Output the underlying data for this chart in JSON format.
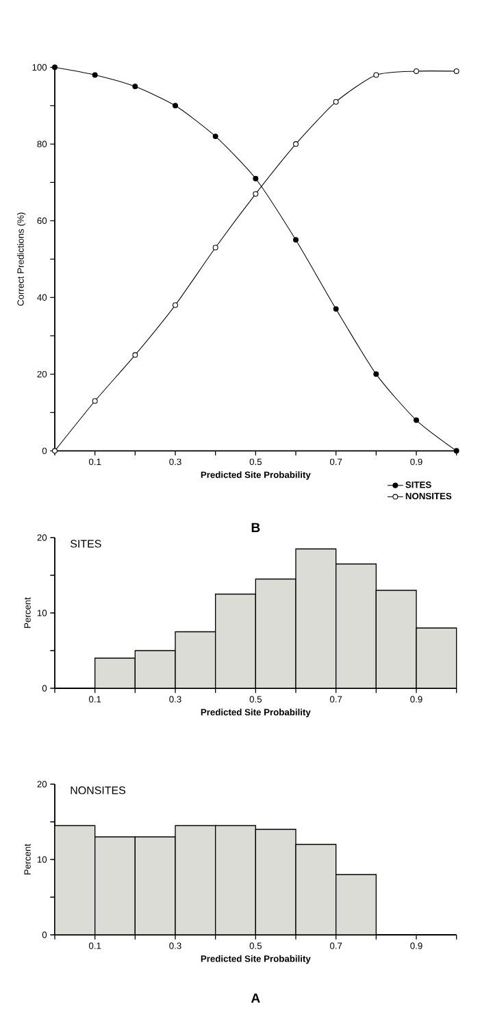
{
  "chart_data": [
    {
      "type": "histogram",
      "title": "SITES",
      "xlabel": "Predicted Site Probability",
      "ylabel": "Percent",
      "bins": [
        0.1,
        0.2,
        0.3,
        0.4,
        0.5,
        0.6,
        0.7,
        0.8,
        0.9,
        1.0
      ],
      "values": [
        4,
        5,
        7.5,
        12.5,
        14.5,
        18.5,
        16.5,
        13,
        8
      ],
      "color": "#dcdcd6",
      "xlim": [
        0,
        1
      ],
      "ylim": [
        0,
        20
      ],
      "xticks": [
        {
          "value": 0,
          "label": null
        },
        0.1,
        {
          "value": 0.2,
          "label": null
        },
        0.3,
        {
          "value": 0.4,
          "label": null
        },
        0.5,
        {
          "value": 0.6,
          "label": null
        },
        0.7,
        {
          "value": 0.8,
          "label": null
        },
        0.9,
        {
          "value": 1.0,
          "label": null
        }
      ],
      "yticks": [
        0,
        {
          "value": 5,
          "label": null
        },
        10,
        {
          "value": 15,
          "label": null
        },
        20
      ]
    },
    {
      "type": "histogram",
      "title": "NONSITES",
      "xlabel": "Predicted Site Probability",
      "ylabel": "Percent",
      "bins": [
        0,
        0.1,
        0.2,
        0.3,
        0.4,
        0.5,
        0.6,
        0.7,
        0.8
      ],
      "values": [
        14.5,
        13,
        13,
        14.5,
        14.5,
        14,
        12,
        8
      ],
      "color": "#dcdcd6",
      "xlim": [
        0,
        1
      ],
      "ylim": [
        0,
        20
      ],
      "xticks": [
        {
          "value": 0,
          "label": null
        },
        0.1,
        {
          "value": 0.2,
          "label": null
        },
        0.3,
        {
          "value": 0.4,
          "label": null
        },
        0.5,
        {
          "value": 0.6,
          "label": null
        },
        0.7,
        {
          "value": 0.8,
          "label": null
        },
        0.9,
        {
          "value": 1.0,
          "label": null
        }
      ],
      "yticks": [
        0,
        {
          "value": 5,
          "label": null
        },
        10,
        {
          "value": 15,
          "label": null
        },
        20
      ],
      "annotations": [
        "A"
      ]
    },
    {
      "type": "line",
      "xlabel": "Predicted Site Probability",
      "ylabel": "Correct Predictions (%)",
      "x": [
        0,
        0.1,
        0.2,
        0.3,
        0.4,
        0.5,
        0.6,
        0.7,
        0.8,
        0.9,
        1.0
      ],
      "series": [
        {
          "name": "SITES",
          "color": "#000000",
          "values": [
            100,
            98,
            95,
            90,
            82,
            71,
            55,
            37,
            20,
            8,
            0
          ]
        },
        {
          "name": "NONSITES",
          "color": "#000000",
          "values": [
            0,
            13,
            25,
            38,
            53,
            67,
            80,
            91,
            98,
            99,
            99
          ]
        }
      ],
      "marker": "circle",
      "legend": "bottom right",
      "xlim": [
        0,
        1
      ],
      "ylim": [
        0,
        100
      ],
      "xticks": [
        {
          "value": 0,
          "label": null
        },
        0.1,
        {
          "value": 0.2,
          "label": null
        },
        0.3,
        {
          "value": 0.4,
          "label": null
        },
        0.5,
        {
          "value": 0.6,
          "label": null
        },
        0.7,
        {
          "value": 0.8,
          "label": null
        },
        0.9,
        {
          "value": 1.0,
          "label": null
        }
      ],
      "yticks": [
        0,
        {
          "value": 10,
          "label": null
        },
        20,
        {
          "value": 30,
          "label": null
        },
        40,
        {
          "value": 50,
          "label": null
        },
        60,
        {
          "value": 70,
          "label": null
        },
        80,
        {
          "value": 90,
          "label": null
        },
        100
      ],
      "annotations": [
        "B"
      ]
    }
  ]
}
